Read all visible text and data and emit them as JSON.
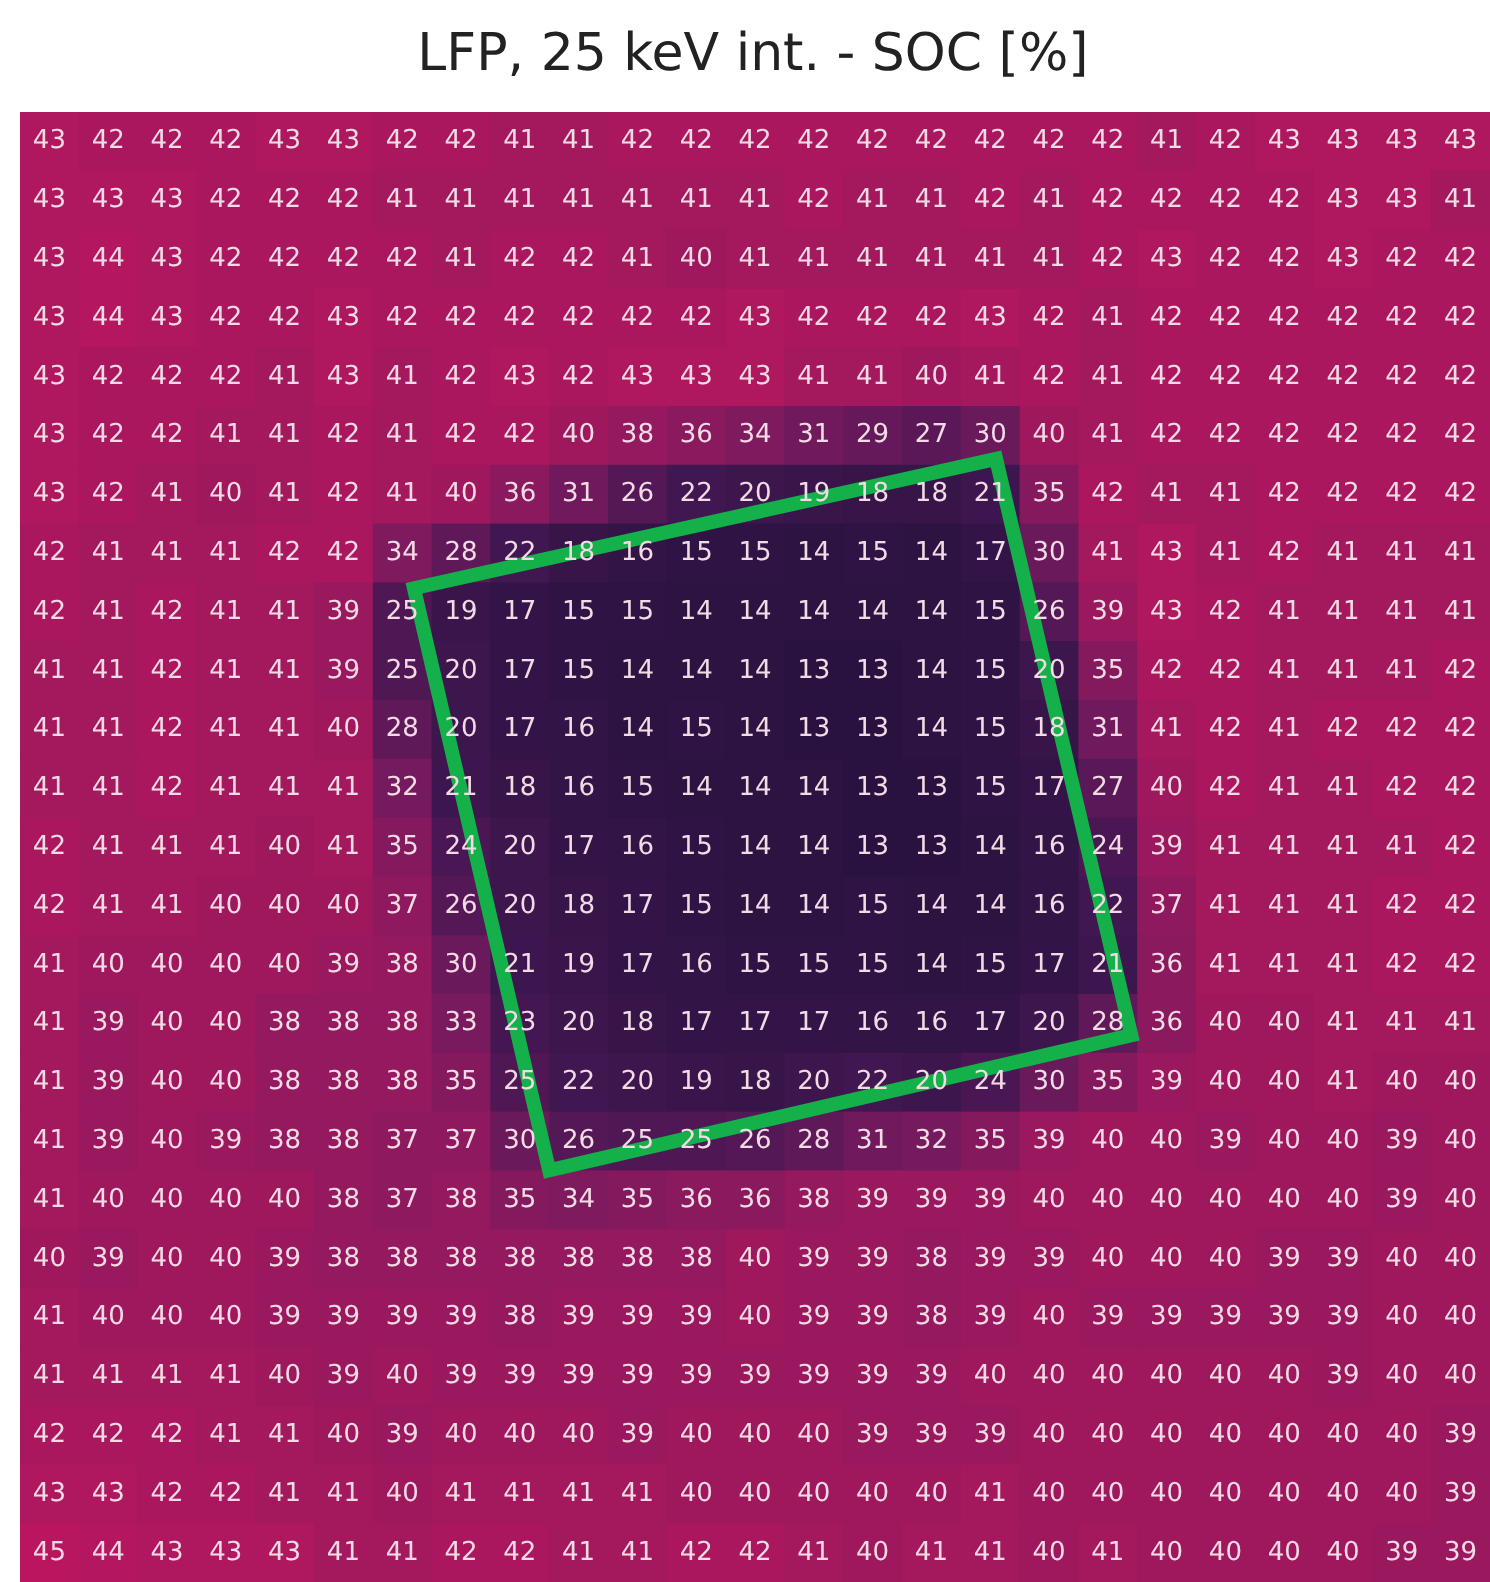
{
  "chart_data": {
    "type": "heatmap",
    "title": "LFP, 25 keV int. - SOC [%]",
    "data_labels": true,
    "categories": [
      null,
      null,
      null,
      null,
      null,
      null,
      null,
      null,
      null,
      null,
      null,
      null,
      null,
      null,
      null,
      null,
      null,
      null,
      null,
      null,
      null,
      null,
      null,
      null,
      null
    ],
    "y_categories": [
      null,
      null,
      null,
      null,
      null,
      null,
      null,
      null,
      null,
      null,
      null,
      null,
      null,
      null,
      null,
      null,
      null,
      null,
      null,
      null,
      null,
      null,
      null,
      null,
      null
    ],
    "cells": [
      [
        43,
        42,
        42,
        42,
        43,
        43,
        42,
        42,
        41,
        41,
        42,
        42,
        42,
        42,
        42,
        42,
        42,
        42,
        42,
        41,
        42,
        43,
        43,
        43,
        43
      ],
      [
        43,
        43,
        43,
        42,
        42,
        42,
        41,
        41,
        41,
        41,
        41,
        41,
        41,
        42,
        41,
        41,
        42,
        41,
        42,
        42,
        42,
        42,
        43,
        43,
        41
      ],
      [
        43,
        44,
        43,
        42,
        42,
        42,
        42,
        41,
        42,
        42,
        41,
        40,
        41,
        41,
        41,
        41,
        41,
        41,
        42,
        43,
        42,
        42,
        43,
        42,
        42
      ],
      [
        43,
        44,
        43,
        42,
        42,
        43,
        42,
        42,
        42,
        42,
        42,
        42,
        43,
        42,
        42,
        42,
        43,
        42,
        41,
        42,
        42,
        42,
        42,
        42,
        42
      ],
      [
        43,
        42,
        42,
        42,
        41,
        43,
        41,
        42,
        43,
        42,
        43,
        43,
        43,
        41,
        41,
        40,
        41,
        42,
        41,
        42,
        42,
        42,
        42,
        42,
        42
      ],
      [
        43,
        42,
        42,
        41,
        41,
        42,
        41,
        42,
        42,
        40,
        38,
        36,
        34,
        31,
        29,
        27,
        30,
        40,
        41,
        42,
        42,
        42,
        42,
        42,
        42
      ],
      [
        43,
        42,
        41,
        40,
        41,
        42,
        41,
        40,
        36,
        31,
        26,
        22,
        20,
        19,
        18,
        18,
        21,
        35,
        42,
        41,
        41,
        42,
        42,
        42,
        42
      ],
      [
        42,
        41,
        41,
        41,
        42,
        42,
        34,
        28,
        22,
        18,
        16,
        15,
        15,
        14,
        15,
        14,
        17,
        30,
        41,
        43,
        41,
        42,
        41,
        41,
        41
      ],
      [
        42,
        41,
        42,
        41,
        41,
        39,
        25,
        19,
        17,
        15,
        15,
        14,
        14,
        14,
        14,
        14,
        15,
        26,
        39,
        43,
        42,
        41,
        41,
        41,
        41
      ],
      [
        41,
        41,
        42,
        41,
        41,
        39,
        25,
        20,
        17,
        15,
        14,
        14,
        14,
        13,
        13,
        14,
        15,
        20,
        35,
        42,
        42,
        41,
        41,
        41,
        42
      ],
      [
        41,
        41,
        42,
        41,
        41,
        40,
        28,
        20,
        17,
        16,
        14,
        15,
        14,
        13,
        13,
        14,
        15,
        18,
        31,
        41,
        42,
        41,
        42,
        42,
        42
      ],
      [
        41,
        41,
        42,
        41,
        41,
        41,
        32,
        21,
        18,
        16,
        15,
        14,
        14,
        14,
        13,
        13,
        15,
        17,
        27,
        40,
        42,
        41,
        41,
        42,
        42
      ],
      [
        42,
        41,
        41,
        41,
        40,
        41,
        35,
        24,
        20,
        17,
        16,
        15,
        14,
        14,
        13,
        13,
        14,
        16,
        24,
        39,
        41,
        41,
        41,
        41,
        42
      ],
      [
        42,
        41,
        41,
        40,
        40,
        40,
        37,
        26,
        20,
        18,
        17,
        15,
        14,
        14,
        15,
        14,
        14,
        16,
        22,
        37,
        41,
        41,
        41,
        42,
        42
      ],
      [
        41,
        40,
        40,
        40,
        40,
        39,
        38,
        30,
        21,
        19,
        17,
        16,
        15,
        15,
        15,
        14,
        15,
        17,
        21,
        36,
        41,
        41,
        41,
        42,
        42
      ],
      [
        41,
        39,
        40,
        40,
        38,
        38,
        38,
        33,
        23,
        20,
        18,
        17,
        17,
        17,
        16,
        16,
        17,
        20,
        28,
        36,
        40,
        40,
        41,
        41,
        41
      ],
      [
        41,
        39,
        40,
        40,
        38,
        38,
        38,
        35,
        25,
        22,
        20,
        19,
        18,
        20,
        22,
        20,
        24,
        30,
        35,
        39,
        40,
        40,
        41,
        40,
        40
      ],
      [
        41,
        39,
        40,
        39,
        38,
        38,
        37,
        37,
        30,
        26,
        25,
        25,
        26,
        28,
        31,
        32,
        35,
        39,
        40,
        40,
        39,
        40,
        40,
        39,
        40
      ],
      [
        41,
        40,
        40,
        40,
        40,
        38,
        37,
        38,
        35,
        34,
        35,
        36,
        36,
        38,
        39,
        39,
        39,
        40,
        40,
        40,
        40,
        40,
        40,
        39,
        40
      ],
      [
        40,
        39,
        40,
        40,
        39,
        38,
        38,
        38,
        38,
        38,
        38,
        38,
        40,
        39,
        39,
        38,
        39,
        39,
        40,
        40,
        40,
        39,
        39,
        40,
        40
      ],
      [
        41,
        40,
        40,
        40,
        39,
        39,
        39,
        39,
        38,
        39,
        39,
        39,
        40,
        39,
        39,
        38,
        39,
        40,
        39,
        39,
        39,
        39,
        39,
        40,
        40
      ],
      [
        41,
        41,
        41,
        41,
        40,
        39,
        40,
        39,
        39,
        39,
        39,
        39,
        39,
        39,
        39,
        39,
        40,
        40,
        40,
        40,
        40,
        40,
        39,
        40,
        40
      ],
      [
        42,
        42,
        42,
        41,
        41,
        40,
        39,
        40,
        40,
        40,
        39,
        40,
        40,
        40,
        39,
        39,
        39,
        40,
        40,
        40,
        40,
        40,
        40,
        40,
        39
      ],
      [
        43,
        43,
        42,
        42,
        41,
        41,
        40,
        41,
        41,
        41,
        41,
        40,
        40,
        40,
        40,
        40,
        41,
        40,
        40,
        40,
        40,
        40,
        40,
        40,
        39
      ],
      [
        45,
        44,
        43,
        43,
        43,
        41,
        41,
        42,
        42,
        41,
        41,
        42,
        42,
        41,
        40,
        41,
        41,
        40,
        41,
        40,
        40,
        40,
        40,
        39,
        39
      ]
    ]
  }
}
